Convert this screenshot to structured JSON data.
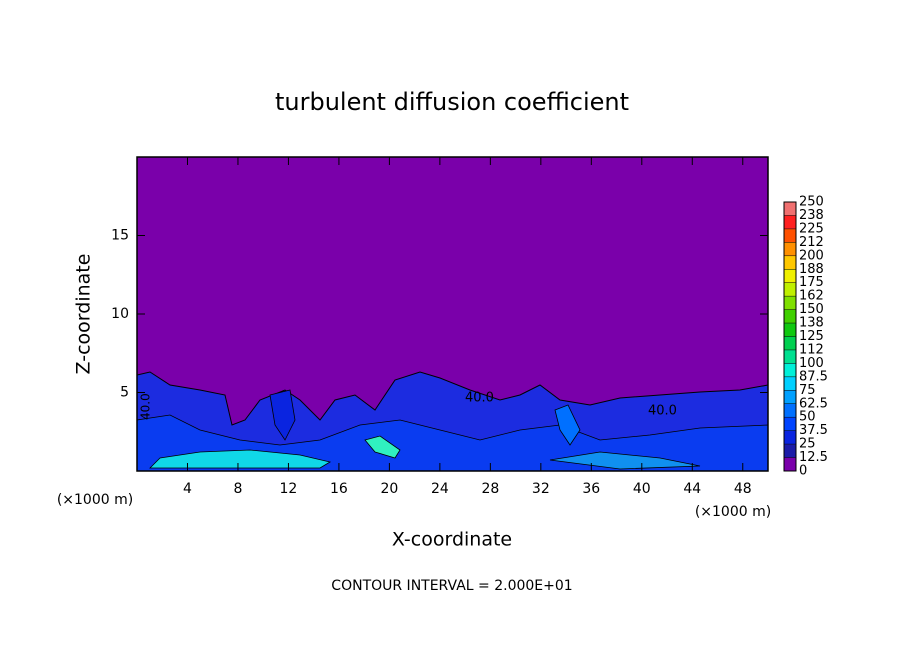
{
  "chart_data": {
    "type": "contour",
    "title": "turbulent diffusion coefficient",
    "x_label": "X-coordinate",
    "y_label": "Z-coordinate",
    "x_unit": "(×1000 m)",
    "xlim": [
      0,
      50
    ],
    "xticks": [
      4,
      8,
      12,
      16,
      20,
      24,
      28,
      32,
      36,
      40,
      44,
      48
    ],
    "ylim": [
      0,
      20
    ],
    "yticks": [
      5,
      10,
      15
    ],
    "colorbar": {
      "ticks": [
        0,
        12.5,
        25,
        37.5,
        50,
        62.5,
        75,
        87.5,
        100,
        {
          "value": 112.5,
          "label": "112"
        },
        125,
        {
          "value": 137.5,
          "label": "138"
        },
        150,
        {
          "value": 162.5,
          "label": "162"
        },
        175,
        {
          "value": 187.5,
          "label": "188"
        },
        200,
        {
          "value": 212.5,
          "label": "212"
        },
        225,
        {
          "value": 237.5,
          "label": "238"
        },
        250
      ],
      "colors": [
        "#7a00aa",
        "#1c1ca8",
        "#0a24e0",
        "#0044ff",
        "#0070ff",
        "#00a0ff",
        "#00d0ff",
        "#00f0d8",
        "#00e090",
        "#00d050",
        "#10c810",
        "#40d000",
        "#80e000",
        "#c0f000",
        "#f0f000",
        "#ffc800",
        "#ff9000",
        "#ff5000",
        "#ff2020",
        "#f07070"
      ]
    },
    "contour_labels": [
      "40.0",
      "40.0",
      "40.0"
    ],
    "footer": "CONTOUR INTERVAL = 2.000E+01"
  }
}
